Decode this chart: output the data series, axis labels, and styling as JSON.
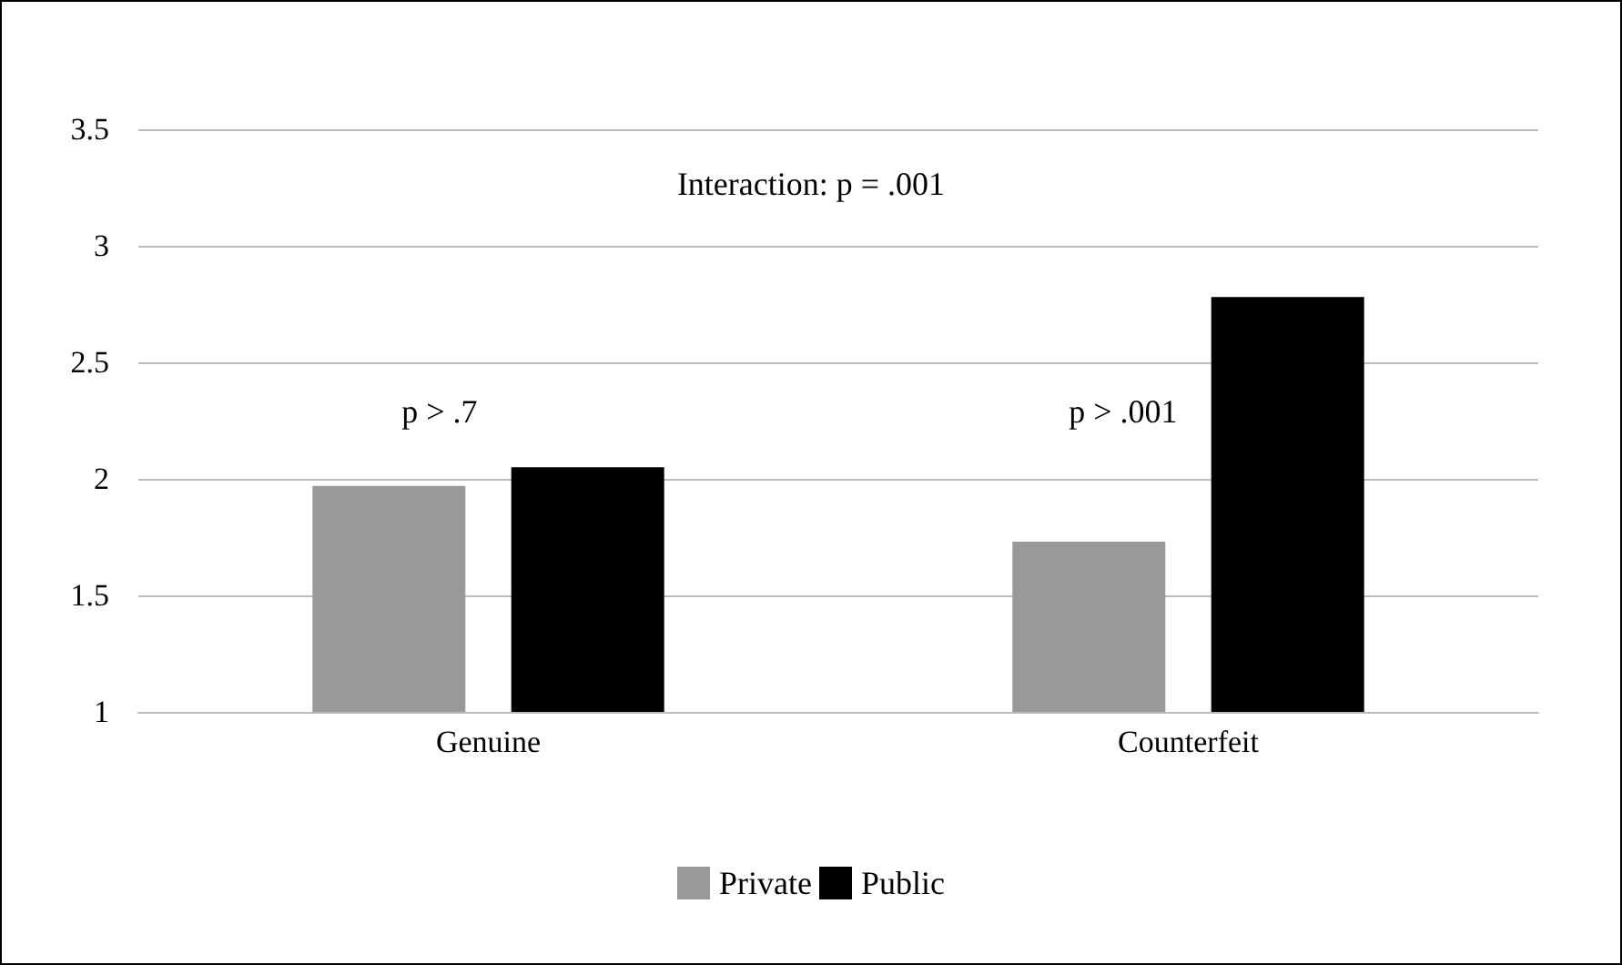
{
  "chart_data": {
    "type": "bar",
    "categories": [
      "Genuine",
      "Counterfeit"
    ],
    "series": [
      {
        "name": "Private",
        "color": "#999999",
        "values": [
          1.97,
          1.73
        ]
      },
      {
        "name": "Public",
        "color": "#000000",
        "values": [
          2.05,
          2.78
        ]
      }
    ],
    "ylim": [
      1,
      3.5
    ],
    "yticks": [
      1,
      1.5,
      2,
      2.5,
      3,
      3.5
    ],
    "grid": "y",
    "legend": "bottom",
    "annotations": [
      "Interaction: p = .001",
      "p > .7",
      "p > .001"
    ]
  }
}
